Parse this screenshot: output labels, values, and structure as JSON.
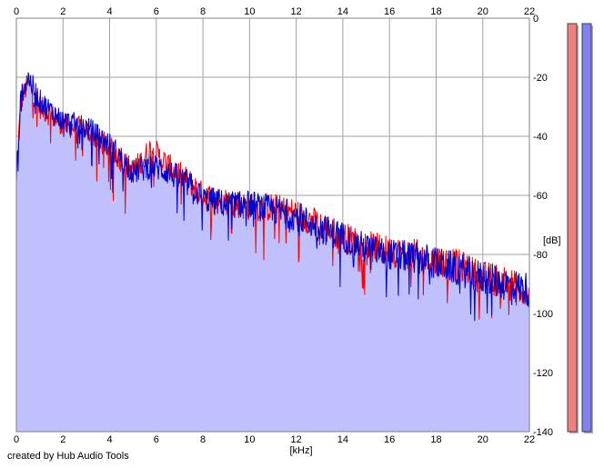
{
  "chart_data": {
    "type": "area",
    "xlabel": "[kHz]",
    "ylabel": "[dB]",
    "xlim": [
      0,
      22
    ],
    "ylim": [
      -140,
      0
    ],
    "x_ticks": [
      "0",
      "2",
      "4",
      "6",
      "8",
      "10",
      "12",
      "14",
      "16",
      "18",
      "20",
      "22"
    ],
    "y_ticks": [
      "0",
      "-20",
      "-40",
      "-60",
      "-80",
      "-100",
      "-120",
      "-140"
    ],
    "grid": true,
    "series": [
      {
        "color": "#ff0000",
        "envelope": [
          {
            "x": 0.0,
            "y": -52
          },
          {
            "x": 0.2,
            "y": -28
          },
          {
            "x": 0.5,
            "y": -22
          },
          {
            "x": 1.0,
            "y": -30
          },
          {
            "x": 2.0,
            "y": -36
          },
          {
            "x": 3.0,
            "y": -38
          },
          {
            "x": 4.0,
            "y": -44
          },
          {
            "x": 5.0,
            "y": -52
          },
          {
            "x": 5.8,
            "y": -44
          },
          {
            "x": 6.5,
            "y": -50
          },
          {
            "x": 7.5,
            "y": -56
          },
          {
            "x": 8.0,
            "y": -60
          },
          {
            "x": 9.0,
            "y": -62
          },
          {
            "x": 10.0,
            "y": -64
          },
          {
            "x": 11.0,
            "y": -64
          },
          {
            "x": 12.0,
            "y": -66
          },
          {
            "x": 13.0,
            "y": -70
          },
          {
            "x": 14.0,
            "y": -74
          },
          {
            "x": 15.0,
            "y": -77
          },
          {
            "x": 16.0,
            "y": -79
          },
          {
            "x": 17.0,
            "y": -80
          },
          {
            "x": 18.0,
            "y": -82
          },
          {
            "x": 19.0,
            "y": -84
          },
          {
            "x": 20.0,
            "y": -88
          },
          {
            "x": 21.0,
            "y": -89
          },
          {
            "x": 22.0,
            "y": -95
          }
        ]
      },
      {
        "color": "#0000cc",
        "envelope": [
          {
            "x": 0.0,
            "y": -55
          },
          {
            "x": 0.2,
            "y": -26
          },
          {
            "x": 0.5,
            "y": -20
          },
          {
            "x": 1.0,
            "y": -28
          },
          {
            "x": 2.0,
            "y": -35
          },
          {
            "x": 3.0,
            "y": -37
          },
          {
            "x": 4.0,
            "y": -43
          },
          {
            "x": 5.0,
            "y": -52
          },
          {
            "x": 5.8,
            "y": -50
          },
          {
            "x": 6.5,
            "y": -52
          },
          {
            "x": 7.5,
            "y": -57
          },
          {
            "x": 8.0,
            "y": -61
          },
          {
            "x": 9.0,
            "y": -63
          },
          {
            "x": 10.0,
            "y": -63
          },
          {
            "x": 11.0,
            "y": -65
          },
          {
            "x": 12.0,
            "y": -67
          },
          {
            "x": 13.0,
            "y": -71
          },
          {
            "x": 14.0,
            "y": -74
          },
          {
            "x": 15.0,
            "y": -78
          },
          {
            "x": 16.0,
            "y": -80
          },
          {
            "x": 17.0,
            "y": -81
          },
          {
            "x": 18.0,
            "y": -83
          },
          {
            "x": 19.0,
            "y": -85
          },
          {
            "x": 20.0,
            "y": -88
          },
          {
            "x": 21.0,
            "y": -90
          },
          {
            "x": 22.0,
            "y": -92
          }
        ]
      }
    ],
    "fill_color": "#c0c0ff",
    "channel_meters": [
      {
        "color": "#f08080",
        "level": 1.0
      },
      {
        "color": "#8080f0",
        "level": 1.0
      }
    ]
  },
  "footer": {
    "credit": "created by Hub Audio Tools"
  }
}
